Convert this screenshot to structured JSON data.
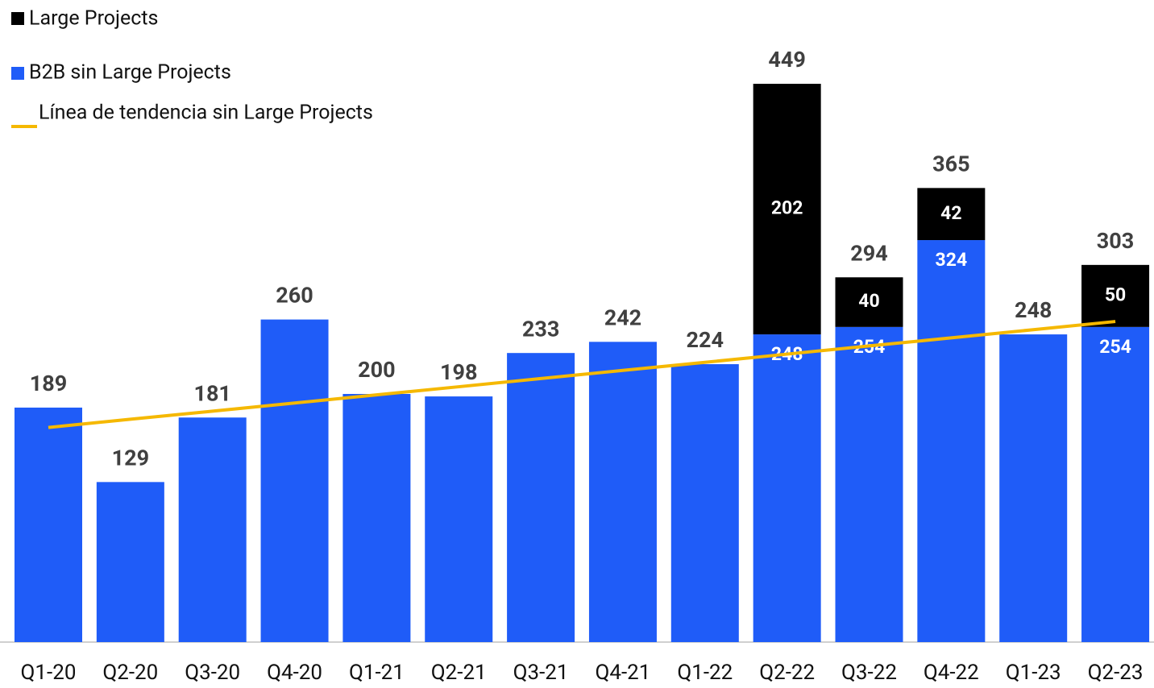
{
  "chart_data": {
    "type": "stacked-bar",
    "categories": [
      "Q1-20",
      "Q2-20",
      "Q3-20",
      "Q4-20",
      "Q1-21",
      "Q2-21",
      "Q3-21",
      "Q4-21",
      "Q1-22",
      "Q2-22",
      "Q3-22",
      "Q4-22",
      "Q1-23",
      "Q2-23"
    ],
    "series": [
      {
        "name": "B2B sin Large Projects",
        "color": "#1f5cf8",
        "values": [
          189,
          129,
          181,
          260,
          200,
          198,
          233,
          242,
          224,
          248,
          254,
          324,
          248,
          254
        ]
      },
      {
        "name": "Large Projects",
        "color": "#000000",
        "values": [
          null,
          null,
          null,
          null,
          null,
          null,
          null,
          null,
          null,
          202,
          40,
          42,
          null,
          50
        ]
      }
    ],
    "totals": [
      null,
      null,
      null,
      null,
      null,
      null,
      null,
      null,
      null,
      449,
      294,
      365,
      null,
      303
    ],
    "trend": {
      "name": "Línea de tendencia sin Large Projects",
      "color": "#f5b800",
      "values": [
        173,
        179.6,
        186.1,
        192.7,
        199.3,
        205.8,
        212.4,
        219,
        225.5,
        232.1,
        238.7,
        245.2,
        251.8,
        258.4
      ]
    },
    "ylim": [
      0,
      500
    ]
  }
}
